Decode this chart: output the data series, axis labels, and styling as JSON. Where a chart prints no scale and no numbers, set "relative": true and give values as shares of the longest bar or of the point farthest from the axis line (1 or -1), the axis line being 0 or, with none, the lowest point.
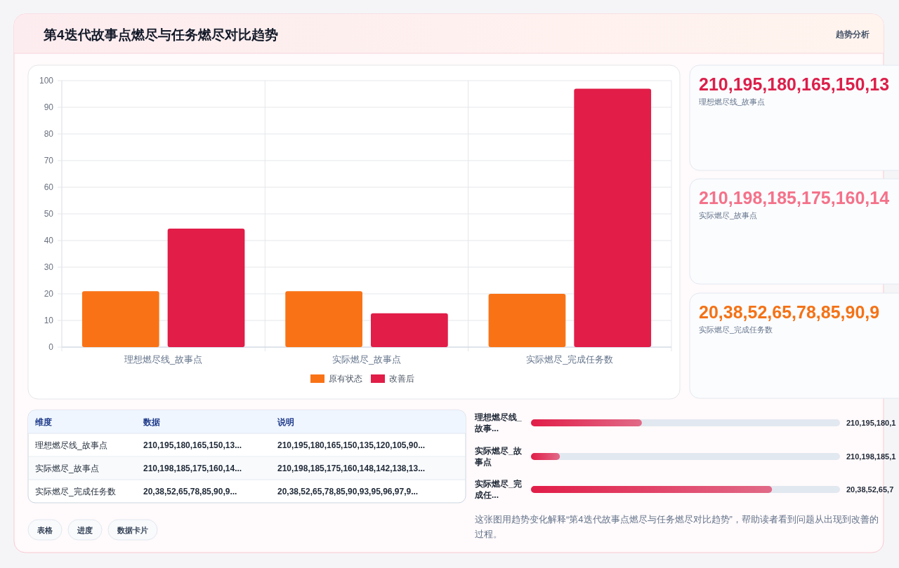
{
  "chart_data": [
    {
      "type": "bar",
      "title": "第4迭代故事点燃尽与任务燃尽对比趋势",
      "categories": [
        "理想燃尽线_故事点",
        "实际燃尽_故事点",
        "实际燃尽_完成任务数"
      ],
      "series": [
        {
          "name": "原有状态",
          "color": "#f97316",
          "values": [
            21,
            21,
            20
          ]
        },
        {
          "name": "改善后",
          "color": "#e11d48",
          "values": [
            44.5,
            12.7,
            97
          ]
        }
      ],
      "ylim": [
        0,
        100
      ],
      "yticks": [
        0,
        10,
        20,
        30,
        40,
        50,
        60,
        70,
        80,
        90,
        100
      ],
      "grid": true,
      "legend": "bottom",
      "annotations": [
        "趋势分析",
        "这张图用趋势变化解释“第4迭代故事点燃尽与任务燃尽对比趋势”，帮助读者看到问题从出现到改善的过程。"
      ]
    },
    {
      "type": "other",
      "colors": [
        "#dc1f4a",
        "#f4728a",
        "#f47216"
      ],
      "annotations": [
        "210,195,180,165,150,13",
        "理想燃尽线_故事点",
        "210,198,185,175,160,14",
        "实际燃尽_故事点",
        "20,38,52,65,78,85,90,9",
        "实际燃尽_完成任务数"
      ]
    },
    {
      "type": "other",
      "categories": [
        "维度",
        "数据",
        "说明"
      ],
      "annotations": [
        "理想燃尽线_故事点",
        "210,195,180,165,150,13...",
        "210,195,180,165,150,135,120,105,90...",
        "实际燃尽_故事点",
        "210,198,185,175,160,14...",
        "210,198,185,175,160,148,142,138,13...",
        "实际燃尽_完成任务数",
        "20,38,52,65,78,85,90,9...",
        "20,38,52,65,78,85,90,93,95,96,97,9..."
      ]
    },
    {
      "type": "bar",
      "orientation": "horizontal",
      "relative": true,
      "categories": [
        "理想燃尽线_故事...",
        "实际燃尽_故事点",
        "实际燃尽_完成任..."
      ],
      "values": [
        0.46,
        0.12,
        1
      ],
      "color": "#e11d48",
      "annotations": [
        "210,195,180,1",
        "210,198,185,1",
        "20,38,52,65,7"
      ]
    },
    {
      "type": "other",
      "annotations": [
        "表格",
        "进度",
        "数据卡片"
      ]
    }
  ]
}
